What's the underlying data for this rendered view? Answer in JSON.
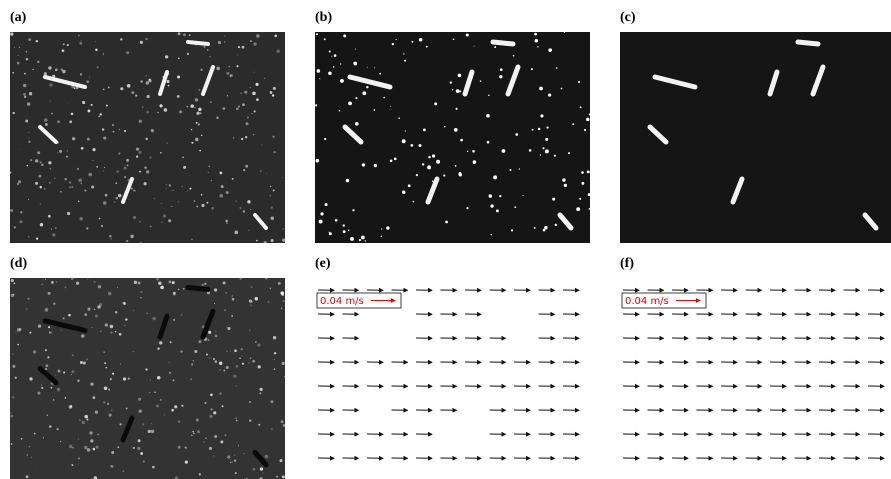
{
  "panels": [
    {
      "label": "(a)"
    },
    {
      "label": "(b)"
    },
    {
      "label": "(c)"
    },
    {
      "label": "(d)"
    },
    {
      "label": "(e)",
      "scale_label": "0.04 m/s"
    },
    {
      "label": "(f)",
      "scale_label": "0.04 m/s"
    }
  ]
}
